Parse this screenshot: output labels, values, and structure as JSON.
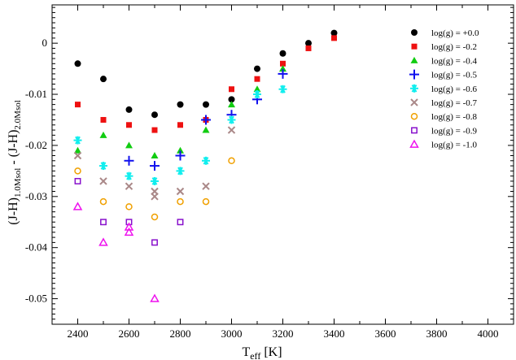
{
  "chart_data": {
    "type": "scatter",
    "title": "",
    "xlabel": "T",
    "xlabel_sub": "eff",
    "xlabel_unit": " [K]",
    "ylabel_parts": [
      "(J-H)",
      "1.0Msol",
      " - (J-H)",
      "2.0Msol"
    ],
    "xlim": [
      2300,
      4100
    ],
    "ylim": [
      -0.055,
      0.0075
    ],
    "x_ticks": [
      2400,
      2600,
      2800,
      3000,
      3200,
      3400,
      3600,
      3800,
      4000
    ],
    "x_tick_labels": [
      "2400",
      "2600",
      "2800",
      "3000",
      "3200",
      "3400",
      "3600",
      "3800",
      "4000"
    ],
    "y_ticks": [
      0,
      -0.01,
      -0.02,
      -0.03,
      -0.04,
      -0.05
    ],
    "y_tick_labels": [
      "0",
      "-0.01",
      "-0.02",
      "-0.03",
      "-0.04",
      "-0.05"
    ],
    "grid": false,
    "legend_position": "top-right",
    "series": [
      {
        "name": "log(g) = +0.0",
        "marker": "circle-filled",
        "color": "#000000",
        "points": [
          [
            2400,
            -0.004
          ],
          [
            2500,
            -0.007
          ],
          [
            2600,
            -0.013
          ],
          [
            2700,
            -0.014
          ],
          [
            2800,
            -0.012
          ],
          [
            2900,
            -0.012
          ],
          [
            3000,
            -0.011
          ],
          [
            3100,
            -0.005
          ],
          [
            3200,
            -0.002
          ],
          [
            3300,
            0.0
          ],
          [
            3400,
            0.002
          ]
        ]
      },
      {
        "name": "log(g) = -0.2",
        "marker": "square-filled",
        "color": "#ee1111",
        "points": [
          [
            2400,
            -0.012
          ],
          [
            2500,
            -0.015
          ],
          [
            2600,
            -0.016
          ],
          [
            2700,
            -0.017
          ],
          [
            2800,
            -0.016
          ],
          [
            2900,
            -0.015
          ],
          [
            3000,
            -0.009
          ],
          [
            3100,
            -0.007
          ],
          [
            3200,
            -0.004
          ],
          [
            3300,
            -0.001
          ],
          [
            3400,
            0.001
          ]
        ]
      },
      {
        "name": "log(g) = -0.4",
        "marker": "triangle-filled",
        "color": "#11cc11",
        "points": [
          [
            2400,
            -0.021
          ],
          [
            2500,
            -0.018
          ],
          [
            2600,
            -0.02
          ],
          [
            2700,
            -0.022
          ],
          [
            2800,
            -0.021
          ],
          [
            2900,
            -0.017
          ],
          [
            3000,
            -0.012
          ],
          [
            3100,
            -0.009
          ],
          [
            3200,
            -0.005
          ]
        ]
      },
      {
        "name": "log(g) = -0.5",
        "marker": "plus",
        "color": "#1111ee",
        "points": [
          [
            2600,
            -0.023
          ],
          [
            2700,
            -0.024
          ],
          [
            2800,
            -0.022
          ],
          [
            2900,
            -0.015
          ],
          [
            3000,
            -0.014
          ],
          [
            3100,
            -0.011
          ],
          [
            3200,
            -0.006
          ]
        ]
      },
      {
        "name": "log(g) = -0.6",
        "marker": "asterisk",
        "color": "#11eeee",
        "points": [
          [
            2400,
            -0.019
          ],
          [
            2500,
            -0.024
          ],
          [
            2600,
            -0.026
          ],
          [
            2700,
            -0.027
          ],
          [
            2800,
            -0.025
          ],
          [
            2900,
            -0.023
          ],
          [
            3000,
            -0.015
          ],
          [
            3100,
            -0.01
          ],
          [
            3200,
            -0.009
          ]
        ]
      },
      {
        "name": "log(g) = -0.7",
        "marker": "x",
        "color": "#aa8888",
        "points": [
          [
            2400,
            -0.022
          ],
          [
            2500,
            -0.027
          ],
          [
            2600,
            -0.028
          ],
          [
            2700,
            -0.029
          ],
          [
            2700,
            -0.03
          ],
          [
            2800,
            -0.029
          ],
          [
            2900,
            -0.028
          ],
          [
            3000,
            -0.017
          ]
        ]
      },
      {
        "name": "log(g) = -0.8",
        "marker": "circle-open",
        "color": "#f0a000",
        "points": [
          [
            2400,
            -0.025
          ],
          [
            2500,
            -0.031
          ],
          [
            2600,
            -0.032
          ],
          [
            2700,
            -0.034
          ],
          [
            2800,
            -0.031
          ],
          [
            2900,
            -0.031
          ],
          [
            3000,
            -0.023
          ]
        ]
      },
      {
        "name": "log(g) = -0.9",
        "marker": "square-open",
        "color": "#8811cc",
        "points": [
          [
            2400,
            -0.027
          ],
          [
            2500,
            -0.035
          ],
          [
            2600,
            -0.035
          ],
          [
            2700,
            -0.039
          ],
          [
            2800,
            -0.035
          ]
        ]
      },
      {
        "name": "log(g) = -1.0",
        "marker": "triangle-open",
        "color": "#ee11ee",
        "points": [
          [
            2400,
            -0.032
          ],
          [
            2500,
            -0.039
          ],
          [
            2600,
            -0.036
          ],
          [
            2600,
            -0.037
          ],
          [
            2700,
            -0.05
          ]
        ]
      }
    ]
  }
}
